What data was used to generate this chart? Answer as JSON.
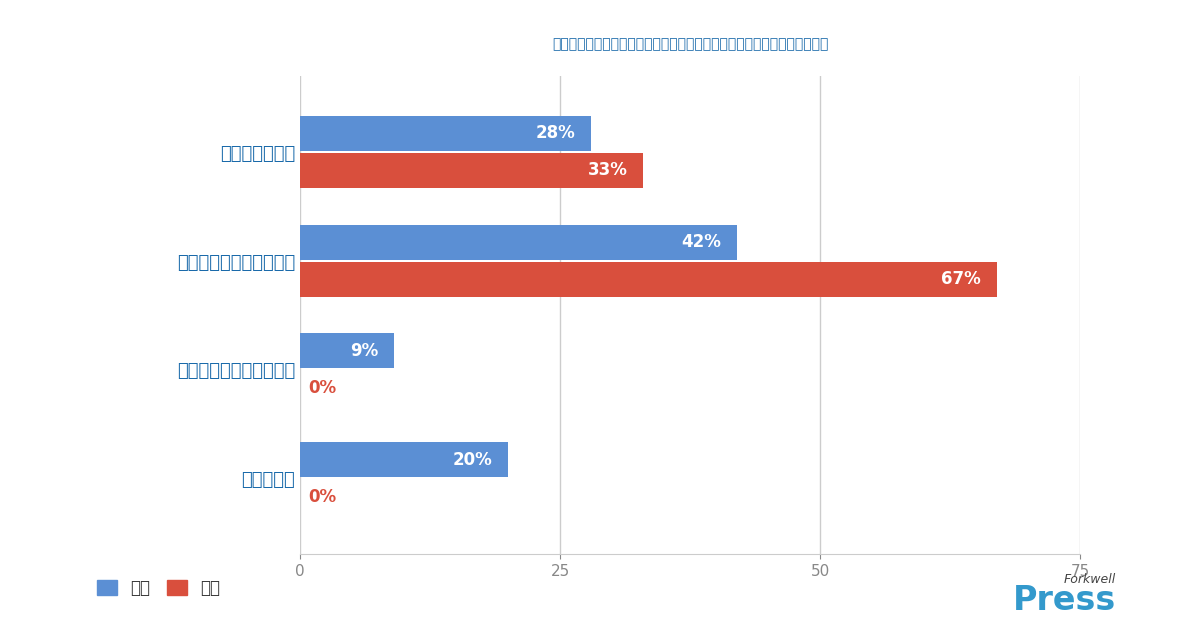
{
  "title": "男女別：ジェンダーによる産休・育休・復職後の影響をどう感じますか？",
  "categories": [
    "わからない",
    "男性の方が影響を受ける",
    "女性の方が影響を受ける",
    "格差を感じない"
  ],
  "male_values": [
    20,
    9,
    42,
    28
  ],
  "female_values": [
    0,
    0,
    67,
    33
  ],
  "male_color": "#5B8FD4",
  "female_color": "#D94F3D",
  "bar_height": 0.32,
  "xlim": [
    0,
    75
  ],
  "xticks": [
    0,
    25,
    50,
    75
  ],
  "background_color": "#FFFFFF",
  "title_color": "#1A6AAA",
  "label_color": "#1A6AAA",
  "title_fontsize": 17,
  "label_fontsize": 13,
  "value_fontsize": 12,
  "legend_labels": [
    "男性",
    "女性"
  ],
  "grid_color": "#CCCCCC",
  "zero_label_color": "#D94F3D"
}
